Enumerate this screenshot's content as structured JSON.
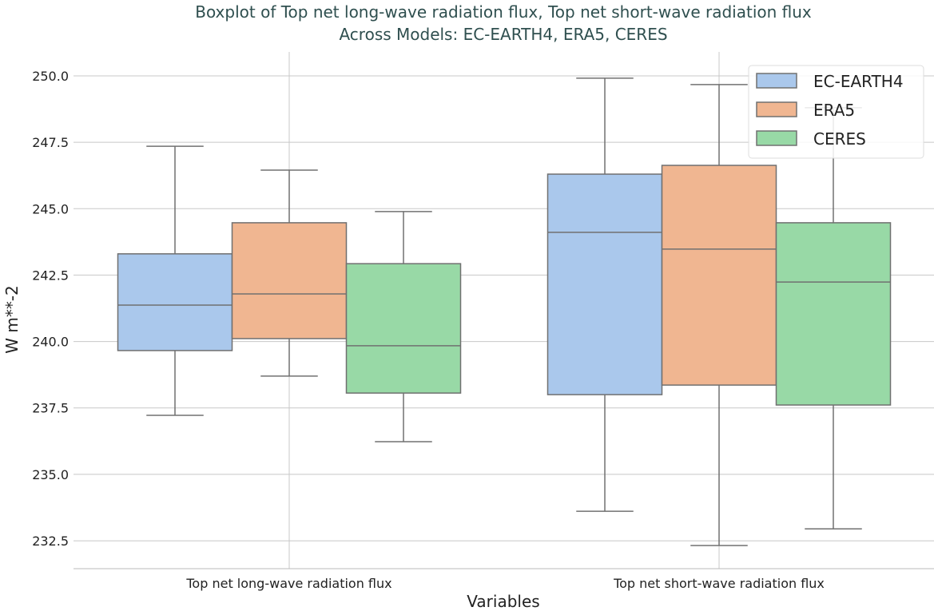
{
  "chart_data": {
    "type": "boxplot",
    "title": "Boxplot of Top net long-wave radiation flux, Top net short-wave radiation flux\nAcross Models: EC-EARTH4, ERA5, CERES",
    "title_lines": [
      "Boxplot of Top net long-wave radiation flux, Top net short-wave radiation flux",
      "Across Models: EC-EARTH4, ERA5, CERES"
    ],
    "xlabel": "Variables",
    "ylabel": "W m**-2",
    "ylim": [
      231.45,
      250.9
    ],
    "yticks": [
      "232.5",
      "235.0",
      "237.5",
      "240.0",
      "242.5",
      "245.0",
      "247.5",
      "250.0"
    ],
    "grid": true,
    "legend_placement": "top-right",
    "categories": [
      "Top net long-wave radiation flux",
      "Top net short-wave radiation flux"
    ],
    "series": [
      {
        "name": "EC-EARTH4",
        "color": "#aac8ec",
        "boxes": [
          {
            "whislo": 237.22,
            "q1": 239.66,
            "med": 241.37,
            "q3": 243.3,
            "whishi": 247.35
          },
          {
            "whislo": 233.61,
            "q1": 238.0,
            "med": 244.11,
            "q3": 246.3,
            "whishi": 249.91
          }
        ]
      },
      {
        "name": "ERA5",
        "color": "#f0b691",
        "boxes": [
          {
            "whislo": 238.7,
            "q1": 240.11,
            "med": 241.79,
            "q3": 244.47,
            "whishi": 246.45
          },
          {
            "whislo": 232.32,
            "q1": 238.36,
            "med": 243.48,
            "q3": 246.63,
            "whishi": 249.67
          }
        ]
      },
      {
        "name": "CERES",
        "color": "#98d9a6",
        "boxes": [
          {
            "whislo": 236.23,
            "q1": 238.06,
            "med": 239.84,
            "q3": 242.93,
            "whishi": 244.89
          },
          {
            "whislo": 232.95,
            "q1": 237.61,
            "med": 242.24,
            "q3": 244.47,
            "whishi": 248.8
          }
        ]
      }
    ]
  },
  "colors": {
    "title": "#2f4f4f",
    "edge": "#707070",
    "grid": "#c8c8c8"
  }
}
